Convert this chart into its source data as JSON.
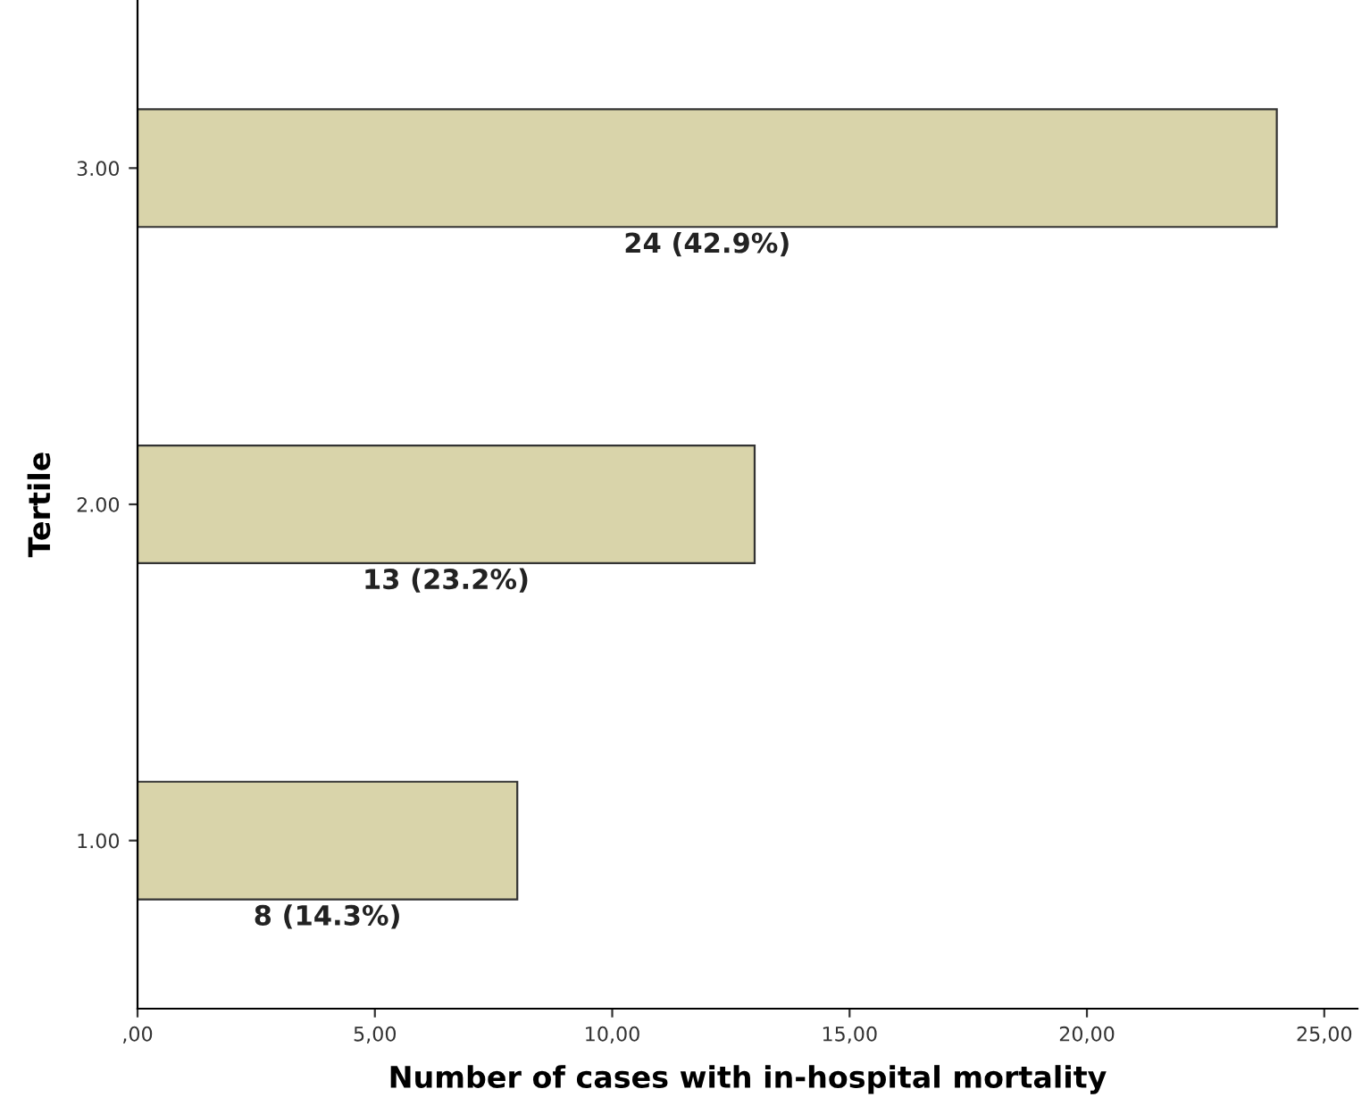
{
  "chart_data": {
    "type": "bar",
    "orientation": "horizontal",
    "xlabel": "Number of cases with in-hospital mortality",
    "ylabel": "Tertile",
    "categories": [
      "3.00",
      "2.00",
      "1.00"
    ],
    "values": [
      24,
      13,
      8
    ],
    "color": "#d9d4aa",
    "value_labels": [
      "24 (42.9%)",
      "13 (23.2%)",
      "8 (14.3%)"
    ],
    "xlim": [
      0,
      25.7
    ],
    "xticks": [
      {
        "value": 0,
        "label": ",00"
      },
      {
        "value": 5,
        "label": "5,00"
      },
      {
        "value": 10,
        "label": "10,00"
      },
      {
        "value": 15,
        "label": "15,00"
      },
      {
        "value": 20,
        "label": "20,00"
      },
      {
        "value": 25,
        "label": "25,00"
      }
    ],
    "grid": false,
    "legend": false
  }
}
